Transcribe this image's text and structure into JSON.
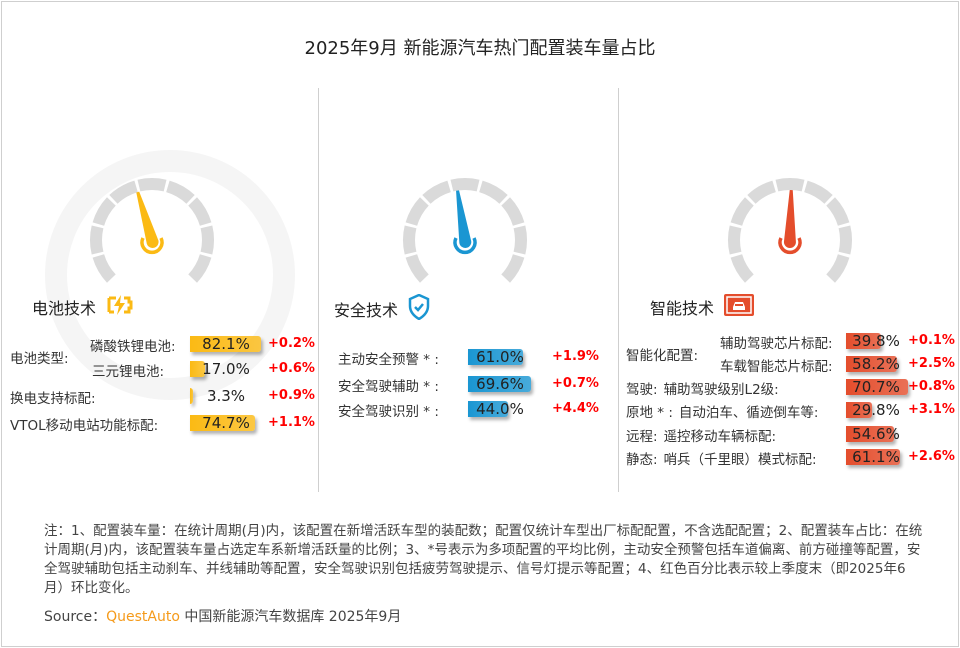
{
  "title": "2025年9月 新能源汽车热门配置装车量占比",
  "watermark": "QUEST AUTO",
  "colors": {
    "battery": "#FBBA14",
    "safety": "#1A96D2",
    "smart": "#E44D2C",
    "change": "#FF0000",
    "brand": "#F59A1A"
  },
  "chart_data": [
    {
      "type": "bar",
      "title": "电池技术",
      "icon": "battery-charging-icon",
      "gauge_color": "#FBBA14",
      "unit": "%",
      "xlim": [
        0,
        100
      ],
      "rows": [
        {
          "group": "电池类型:",
          "label": "磷酸铁锂电池:",
          "value": 82.1,
          "display": "82.1%",
          "change": "+0.2%"
        },
        {
          "group": "",
          "label": "三元锂电池:",
          "value": 17.0,
          "display": "17.0%",
          "change": "+0.6%"
        },
        {
          "group": "换电支持标配:",
          "label": "",
          "value": 3.3,
          "display": "3.3%",
          "change": "+0.9%"
        },
        {
          "group": "VTOL移动电站功能标配:",
          "label": "",
          "value": 74.7,
          "display": "74.7%",
          "change": "+1.1%"
        }
      ]
    },
    {
      "type": "bar",
      "title": "安全技术",
      "icon": "shield-check-icon",
      "gauge_color": "#1A96D2",
      "unit": "%",
      "xlim": [
        0,
        100
      ],
      "rows": [
        {
          "group": "主动安全预警 * :",
          "label": "",
          "value": 61.0,
          "display": "61.0%",
          "change": "+1.9%"
        },
        {
          "group": "安全驾驶辅助 * :",
          "label": "",
          "value": 69.6,
          "display": "69.6%",
          "change": "+0.7%"
        },
        {
          "group": "安全驾驶识别 * :",
          "label": "",
          "value": 44.0,
          "display": "44.0%",
          "change": "+4.4%"
        }
      ]
    },
    {
      "type": "bar",
      "title": "智能技术",
      "icon": "car-icon",
      "gauge_color": "#E44D2C",
      "unit": "%",
      "xlim": [
        0,
        100
      ],
      "rows": [
        {
          "group": "智能化配置:",
          "label": "辅助驾驶芯片标配:",
          "value": 39.8,
          "display": "39.8%",
          "change": "+0.1%"
        },
        {
          "group": "",
          "label": "车载智能芯片标配:",
          "value": 58.2,
          "display": "58.2%",
          "change": "+2.5%"
        },
        {
          "group": "驾驶:",
          "label": "辅助驾驶级别L2级:",
          "value": 70.7,
          "display": "70.7%",
          "change": "+0.8%"
        },
        {
          "group": "原地 * :",
          "label": "自动泊车、循迹倒车等:",
          "value": 29.8,
          "display": "29.8%",
          "change": "+3.1%"
        },
        {
          "group": "远程:",
          "label": "遥控移动车辆标配:",
          "value": 54.6,
          "display": "54.6%",
          "change": ""
        },
        {
          "group": "静态:",
          "label": "哨兵（千里眼）模式标配:",
          "value": 61.1,
          "display": "61.1%",
          "change": "+2.6%"
        }
      ]
    }
  ],
  "note": "注：1、配置装车量：在统计周期(月)内，该配置在新增活跃车型的装配数；配置仅统计车型出厂标配配置，不含选配配置；2、配置装车占比：在统计周期(月)内，该配置装车量占选定车系新增活跃量的比例；3、*号表示为多项配置的平均比例，主动安全预警包括车道偏离、前方碰撞等配置，安全驾驶辅助包括主动刹车、并线辅助等配置，安全驾驶识别包括疲劳驾驶提示、信号灯提示等配置；4、红色百分比表示较上季度末（即2025年6月）环比变化。",
  "source": {
    "label": "Source：",
    "brand": "QuestAuto",
    "text": " 中国新能源汽车数据库 2025年9月"
  }
}
